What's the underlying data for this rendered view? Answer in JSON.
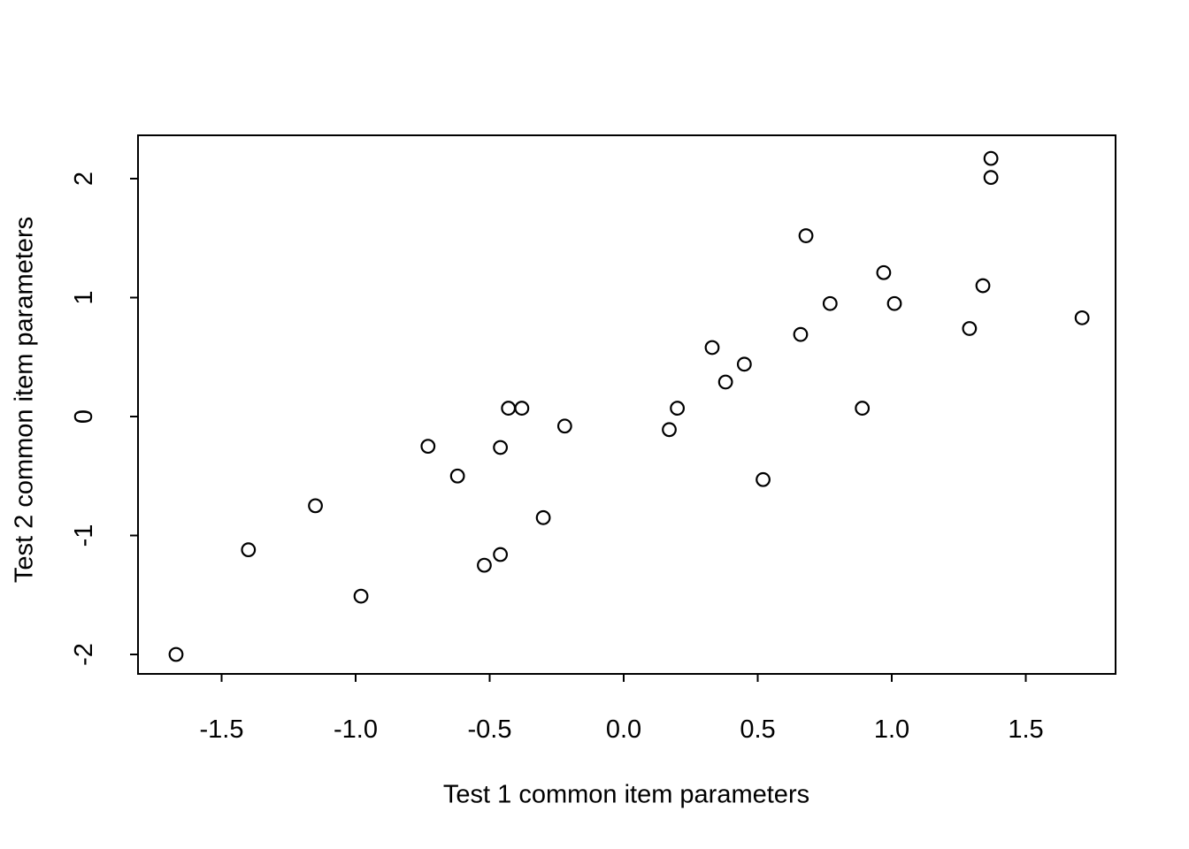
{
  "chart_data": {
    "type": "scatter",
    "title": "",
    "xlabel": "Test 1 common item parameters",
    "ylabel": "Test 2 common item parameters",
    "x_ticks": [
      "-1.5",
      "-1.0",
      "-0.5",
      "0.0",
      "0.5",
      "1.0",
      "1.5"
    ],
    "y_ticks": [
      "-2",
      "-1",
      "0",
      "1",
      "2"
    ],
    "xlim": [
      -1.81,
      1.84
    ],
    "ylim": [
      -2.17,
      2.36
    ],
    "grid": false,
    "legend": "none",
    "marker": "open-circle",
    "colors": {
      "background": "#ffffff",
      "axis": "#000000",
      "marker_stroke": "#000000"
    },
    "points": [
      {
        "x": -1.67,
        "y": -2.0
      },
      {
        "x": -1.4,
        "y": -1.12
      },
      {
        "x": -1.15,
        "y": -0.75
      },
      {
        "x": -0.98,
        "y": -1.51
      },
      {
        "x": -0.73,
        "y": -0.25
      },
      {
        "x": -0.62,
        "y": -0.5
      },
      {
        "x": -0.52,
        "y": -1.25
      },
      {
        "x": -0.46,
        "y": -1.16
      },
      {
        "x": -0.46,
        "y": -0.26
      },
      {
        "x": -0.43,
        "y": 0.07
      },
      {
        "x": -0.38,
        "y": 0.07
      },
      {
        "x": -0.3,
        "y": -0.85
      },
      {
        "x": -0.22,
        "y": -0.08
      },
      {
        "x": 0.17,
        "y": -0.11
      },
      {
        "x": 0.2,
        "y": 0.07
      },
      {
        "x": 0.33,
        "y": 0.58
      },
      {
        "x": 0.38,
        "y": 0.29
      },
      {
        "x": 0.45,
        "y": 0.44
      },
      {
        "x": 0.52,
        "y": -0.53
      },
      {
        "x": 0.66,
        "y": 0.69
      },
      {
        "x": 0.68,
        "y": 1.52
      },
      {
        "x": 0.77,
        "y": 0.95
      },
      {
        "x": 0.89,
        "y": 0.07
      },
      {
        "x": 0.97,
        "y": 1.21
      },
      {
        "x": 1.01,
        "y": 0.95
      },
      {
        "x": 1.29,
        "y": 0.74
      },
      {
        "x": 1.34,
        "y": 1.1
      },
      {
        "x": 1.37,
        "y": 2.01
      },
      {
        "x": 1.37,
        "y": 2.17
      },
      {
        "x": 1.71,
        "y": 0.83
      }
    ]
  }
}
